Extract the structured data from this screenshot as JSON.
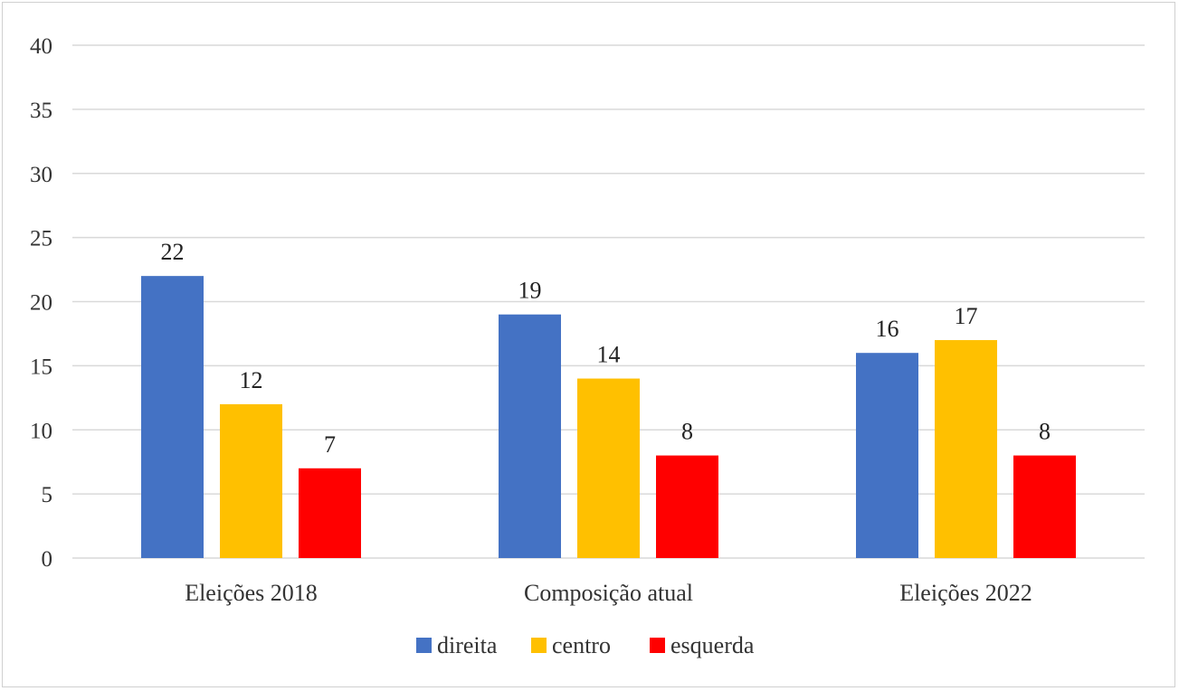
{
  "chart_data": {
    "type": "bar",
    "title": "",
    "xlabel": "",
    "ylabel": "",
    "ylim": [
      0,
      40
    ],
    "yticks": [
      0,
      5,
      10,
      15,
      20,
      25,
      30,
      35,
      40
    ],
    "grid": true,
    "legend_position": "bottom",
    "categories": [
      "Eleições 2018",
      "Composição atual",
      "Eleições 2022"
    ],
    "series": [
      {
        "name": "direita",
        "color": "#4472C4",
        "values": [
          22,
          19,
          16
        ]
      },
      {
        "name": "centro",
        "color": "#FFC000",
        "values": [
          12,
          14,
          17
        ]
      },
      {
        "name": "esquerda",
        "color": "#FF0000",
        "values": [
          7,
          8,
          8
        ]
      }
    ]
  }
}
